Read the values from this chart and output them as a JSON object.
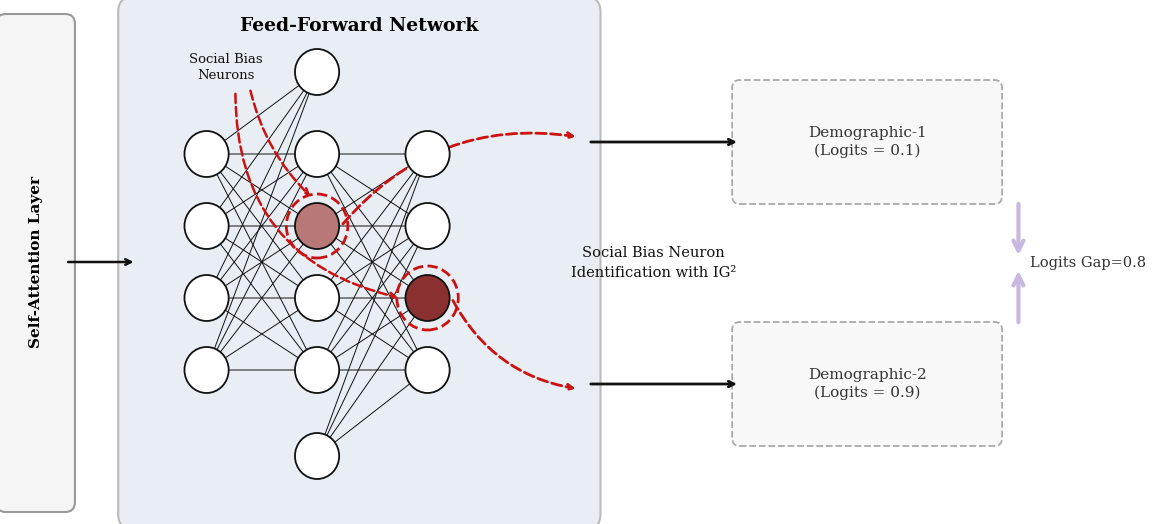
{
  "title": "Feed-Forward Network",
  "self_attention_label": "Self-Attention Layer",
  "social_bias_label": "Social Bias\nNeurons",
  "ig_label": "Social Bias Neuron\nIdentification with IG²",
  "logits_gap_label": "Logits Gap=0.8",
  "demo1_label": "Demographic-1\n(Logits = 0.1)",
  "demo2_label": "Demographic-2\n(Logits = 0.9)",
  "ffn_bg_color": "#e8eef4",
  "neuron_fill": "#ffffff",
  "neuron_edge": "#111111",
  "bias_neuron_fill_top": "#b87878",
  "bias_neuron_fill_bot": "#8b3030",
  "dashed_color": "#cc1111",
  "arrow_color": "#111111",
  "gap_arrow_color": "#c8b8e0",
  "demo_box_edge": "#aaaaaa",
  "demo_box_fill": "#f8f8f8",
  "sa_box_fill": "#f5f5f5",
  "sa_box_edge": "#999999"
}
